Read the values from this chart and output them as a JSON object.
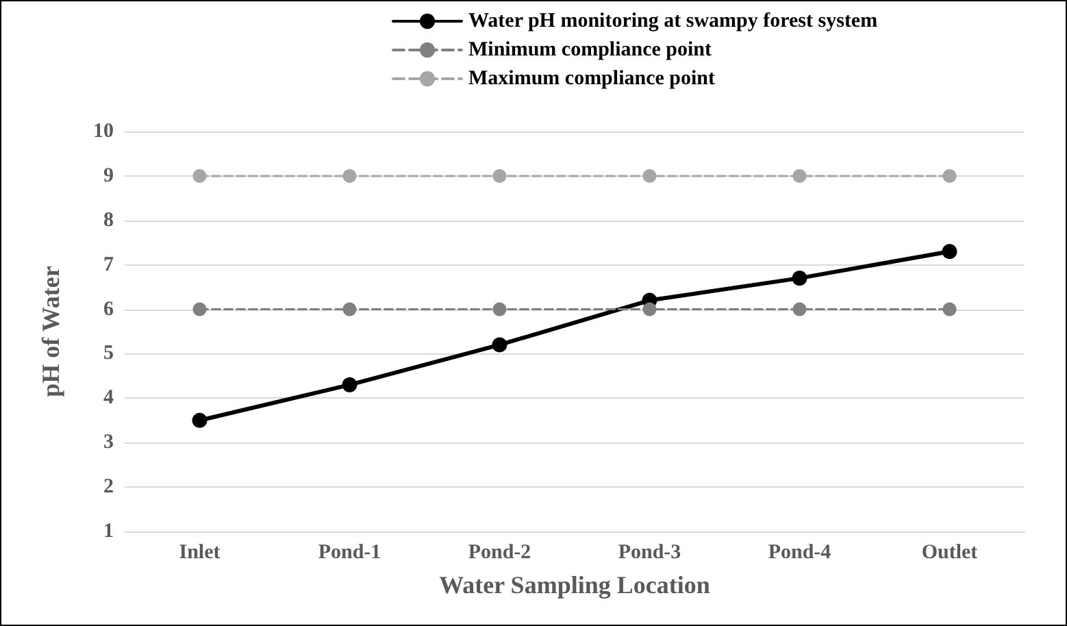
{
  "chart_data": {
    "type": "line",
    "xlabel": "Water Sampling Location",
    "ylabel": "pH of Water",
    "categories": [
      "Inlet",
      "Pond-1",
      "Pond-2",
      "Pond-3",
      "Pond-4",
      "Outlet"
    ],
    "series": [
      {
        "name": "Water pH monitoring at swampy forest system",
        "color": "#000000",
        "values": [
          3.5,
          4.3,
          5.2,
          6.2,
          6.7,
          7.3
        ],
        "line_style": "solid"
      },
      {
        "name": "Minimum compliance point",
        "color": "#808080",
        "values": [
          6,
          6,
          6,
          6,
          6,
          6
        ],
        "line_style": "dashed"
      },
      {
        "name": "Maximum compliance point",
        "color": "#a6a6a6",
        "values": [
          9,
          9,
          9,
          9,
          9,
          9
        ],
        "line_style": "dashed"
      }
    ],
    "ylim": [
      1,
      10
    ],
    "yticks": [
      1,
      2,
      3,
      4,
      5,
      6,
      7,
      8,
      9,
      10
    ],
    "grid": "y",
    "legend": "top",
    "marker": "circle"
  }
}
